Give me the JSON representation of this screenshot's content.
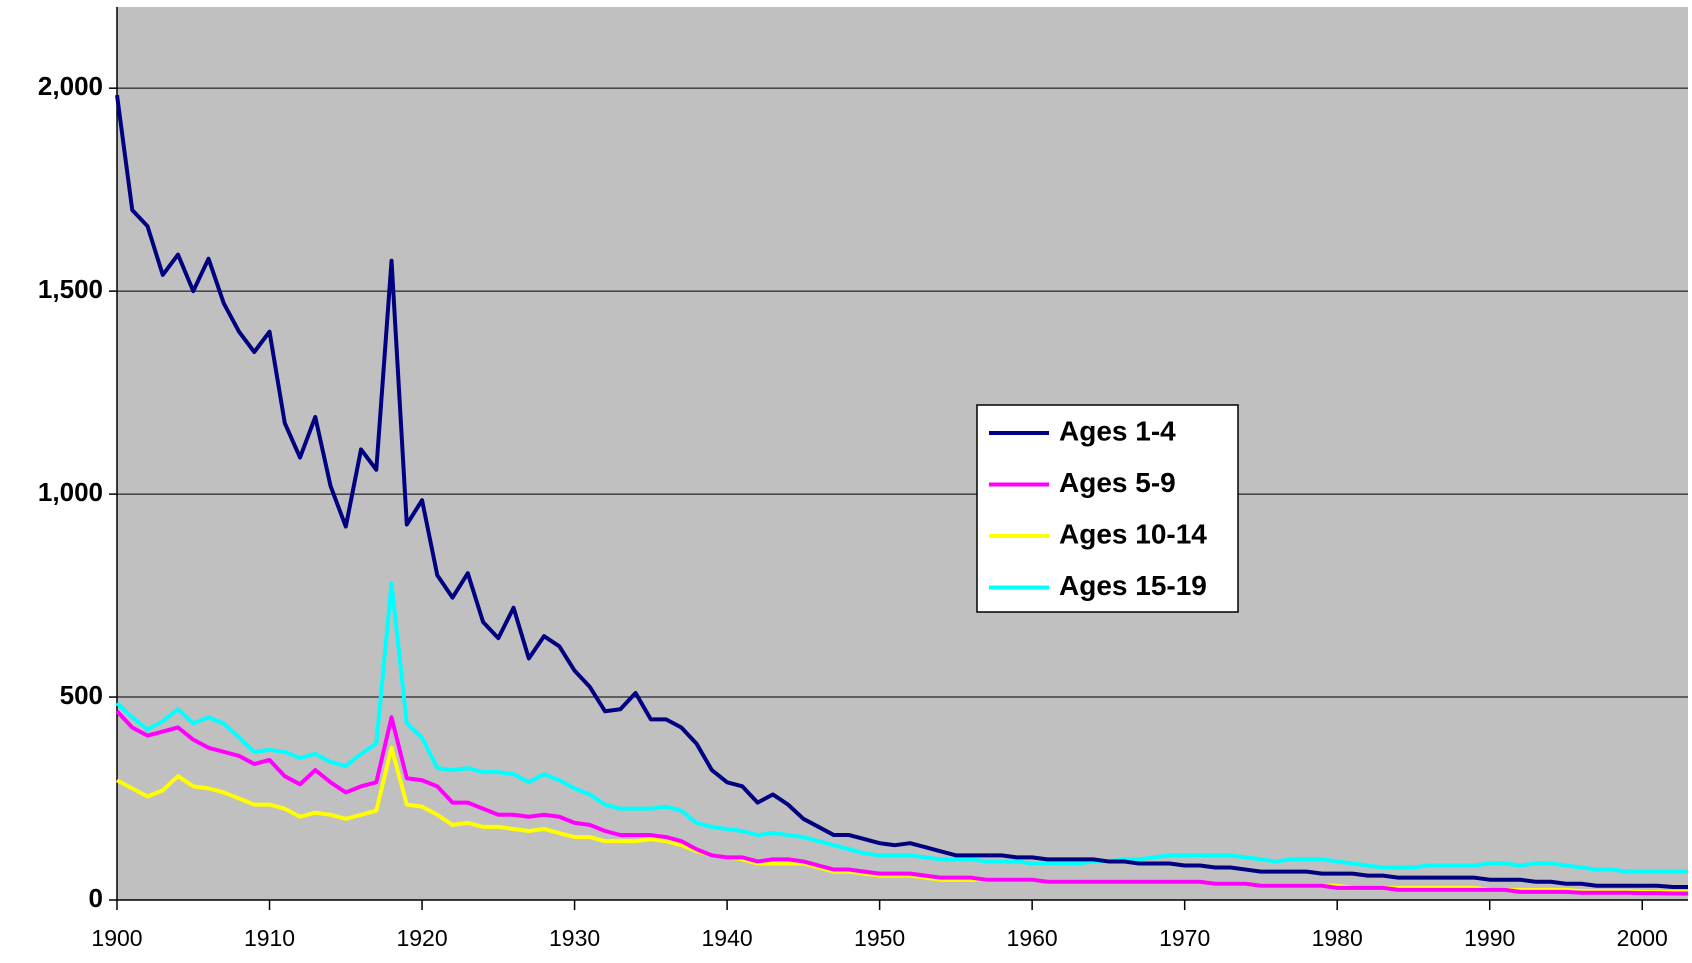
{
  "chart_data": {
    "type": "line",
    "x": [
      1900,
      1901,
      1902,
      1903,
      1904,
      1905,
      1906,
      1907,
      1908,
      1909,
      1910,
      1911,
      1912,
      1913,
      1914,
      1915,
      1916,
      1917,
      1918,
      1919,
      1920,
      1921,
      1922,
      1923,
      1924,
      1925,
      1926,
      1927,
      1928,
      1929,
      1930,
      1931,
      1932,
      1933,
      1934,
      1935,
      1936,
      1937,
      1938,
      1939,
      1940,
      1941,
      1942,
      1943,
      1944,
      1945,
      1946,
      1947,
      1948,
      1949,
      1950,
      1951,
      1952,
      1953,
      1954,
      1955,
      1956,
      1957,
      1958,
      1959,
      1960,
      1961,
      1962,
      1963,
      1964,
      1965,
      1966,
      1967,
      1968,
      1969,
      1970,
      1971,
      1972,
      1973,
      1974,
      1975,
      1976,
      1977,
      1978,
      1979,
      1980,
      1981,
      1982,
      1983,
      1984,
      1985,
      1986,
      1987,
      1988,
      1989,
      1990,
      1991,
      1992,
      1993,
      1994,
      1995,
      1996,
      1997,
      1998,
      1999,
      2000,
      2001,
      2002,
      2003
    ],
    "series": [
      {
        "name": "Ages 1-4",
        "color": "#000080",
        "values": [
          1983,
          1700,
          1660,
          1540,
          1590,
          1500,
          1580,
          1470,
          1400,
          1350,
          1400,
          1175,
          1090,
          1190,
          1020,
          920,
          1110,
          1060,
          1575,
          925,
          985,
          800,
          745,
          805,
          685,
          645,
          720,
          595,
          650,
          625,
          565,
          525,
          465,
          470,
          510,
          445,
          445,
          425,
          385,
          320,
          290,
          280,
          240,
          260,
          235,
          200,
          180,
          160,
          160,
          150,
          140,
          135,
          140,
          130,
          120,
          110,
          110,
          110,
          110,
          105,
          105,
          100,
          100,
          100,
          100,
          95,
          95,
          90,
          90,
          90,
          85,
          85,
          80,
          80,
          75,
          70,
          70,
          70,
          70,
          65,
          65,
          65,
          60,
          60,
          55,
          55,
          55,
          55,
          55,
          55,
          50,
          50,
          50,
          45,
          45,
          40,
          40,
          35,
          35,
          35,
          35,
          35,
          32,
          32
        ]
      },
      {
        "name": "Ages 5-9",
        "color": "#ff00ff",
        "values": [
          465,
          425,
          405,
          415,
          425,
          395,
          375,
          365,
          355,
          335,
          345,
          305,
          285,
          320,
          290,
          265,
          280,
          290,
          450,
          300,
          295,
          280,
          240,
          240,
          225,
          210,
          210,
          205,
          210,
          205,
          190,
          185,
          170,
          160,
          160,
          160,
          155,
          145,
          125,
          110,
          105,
          105,
          95,
          100,
          100,
          95,
          85,
          75,
          75,
          70,
          65,
          65,
          65,
          60,
          55,
          55,
          55,
          50,
          50,
          50,
          50,
          45,
          45,
          45,
          45,
          45,
          45,
          45,
          45,
          45,
          45,
          45,
          40,
          40,
          40,
          35,
          35,
          35,
          35,
          35,
          30,
          30,
          30,
          30,
          25,
          25,
          25,
          25,
          25,
          25,
          25,
          25,
          20,
          20,
          20,
          20,
          18,
          18,
          18,
          18,
          17,
          17,
          16,
          16
        ]
      },
      {
        "name": "Ages 10-14",
        "color": "#ffff00",
        "values": [
          295,
          275,
          255,
          270,
          305,
          280,
          275,
          265,
          250,
          235,
          235,
          225,
          205,
          215,
          210,
          200,
          210,
          220,
          375,
          235,
          230,
          210,
          185,
          190,
          180,
          180,
          175,
          170,
          175,
          165,
          155,
          155,
          145,
          145,
          145,
          150,
          145,
          135,
          120,
          110,
          105,
          100,
          90,
          90,
          90,
          90,
          80,
          70,
          70,
          65,
          60,
          60,
          60,
          55,
          50,
          50,
          50,
          50,
          50,
          50,
          50,
          45,
          45,
          45,
          45,
          45,
          45,
          45,
          45,
          45,
          45,
          45,
          40,
          40,
          40,
          35,
          35,
          35,
          35,
          35,
          35,
          30,
          30,
          30,
          30,
          30,
          30,
          30,
          30,
          30,
          25,
          25,
          25,
          25,
          25,
          25,
          22,
          22,
          22,
          22,
          20,
          20,
          20,
          20
        ]
      },
      {
        "name": "Ages 15-19",
        "color": "#00ffff",
        "values": [
          485,
          450,
          420,
          440,
          470,
          435,
          450,
          435,
          400,
          365,
          370,
          365,
          350,
          360,
          340,
          330,
          360,
          385,
          780,
          435,
          400,
          325,
          320,
          325,
          315,
          315,
          310,
          290,
          310,
          295,
          275,
          260,
          235,
          225,
          225,
          225,
          230,
          220,
          190,
          180,
          175,
          170,
          160,
          165,
          160,
          155,
          145,
          135,
          125,
          115,
          110,
          110,
          110,
          105,
          100,
          100,
          100,
          95,
          95,
          95,
          90,
          90,
          90,
          90,
          95,
          95,
          100,
          100,
          105,
          110,
          110,
          110,
          110,
          110,
          105,
          100,
          95,
          100,
          100,
          100,
          95,
          90,
          85,
          80,
          80,
          80,
          85,
          85,
          85,
          85,
          90,
          90,
          85,
          90,
          90,
          85,
          80,
          75,
          75,
          70,
          70,
          70,
          70,
          70
        ]
      }
    ],
    "xlim": [
      1900,
      2003
    ],
    "xticks": [
      1900,
      1910,
      1920,
      1930,
      1940,
      1950,
      1960,
      1970,
      1980,
      1990,
      2000
    ],
    "ylim": [
      0,
      2200
    ],
    "yticks": [
      0,
      {
        "value": 500,
        "label": "500"
      },
      {
        "value": 1000,
        "label": "1,000"
      },
      {
        "value": 1500,
        "label": "1,500"
      },
      {
        "value": 2000,
        "label": "2,000"
      }
    ],
    "grid": true,
    "legend": "center-right",
    "background": "#c0c0c0"
  }
}
